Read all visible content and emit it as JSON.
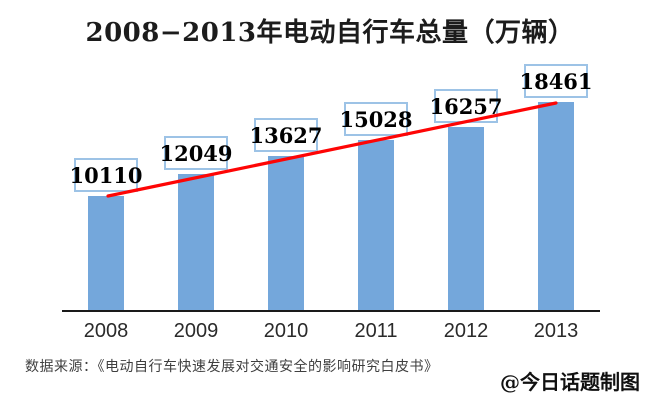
{
  "chart_data": {
    "type": "bar",
    "title": "2008−2013年电动自行车总量（万辆）",
    "categories": [
      "2008",
      "2009",
      "2010",
      "2011",
      "2012",
      "2013"
    ],
    "values": [
      10110,
      12049,
      13627,
      15028,
      16257,
      18461
    ],
    "xlabel": "",
    "ylabel": "",
    "unit": "万辆",
    "ylim": [
      0,
      22000
    ],
    "grid": false,
    "y_axis_visible": false,
    "data_labels": true,
    "data_label_style": "boxed",
    "trend_line": {
      "type": "straight",
      "from": {
        "category": "2008",
        "value": 10110
      },
      "to": {
        "category": "2013",
        "value": 18461
      },
      "color": "#fe0505"
    },
    "colors": {
      "bar": "#74a7db",
      "label_box_border": "#9dc3e6",
      "label_box_fill": "#ffffff",
      "label_text": "#000000",
      "axis_line": "#1a1a1a",
      "trend": "#fe0505"
    }
  },
  "footer": {
    "source": "数据来源：《电动自行车快速发展对交通安全的影响研究白皮书》",
    "credit": "@今日话题制图"
  }
}
